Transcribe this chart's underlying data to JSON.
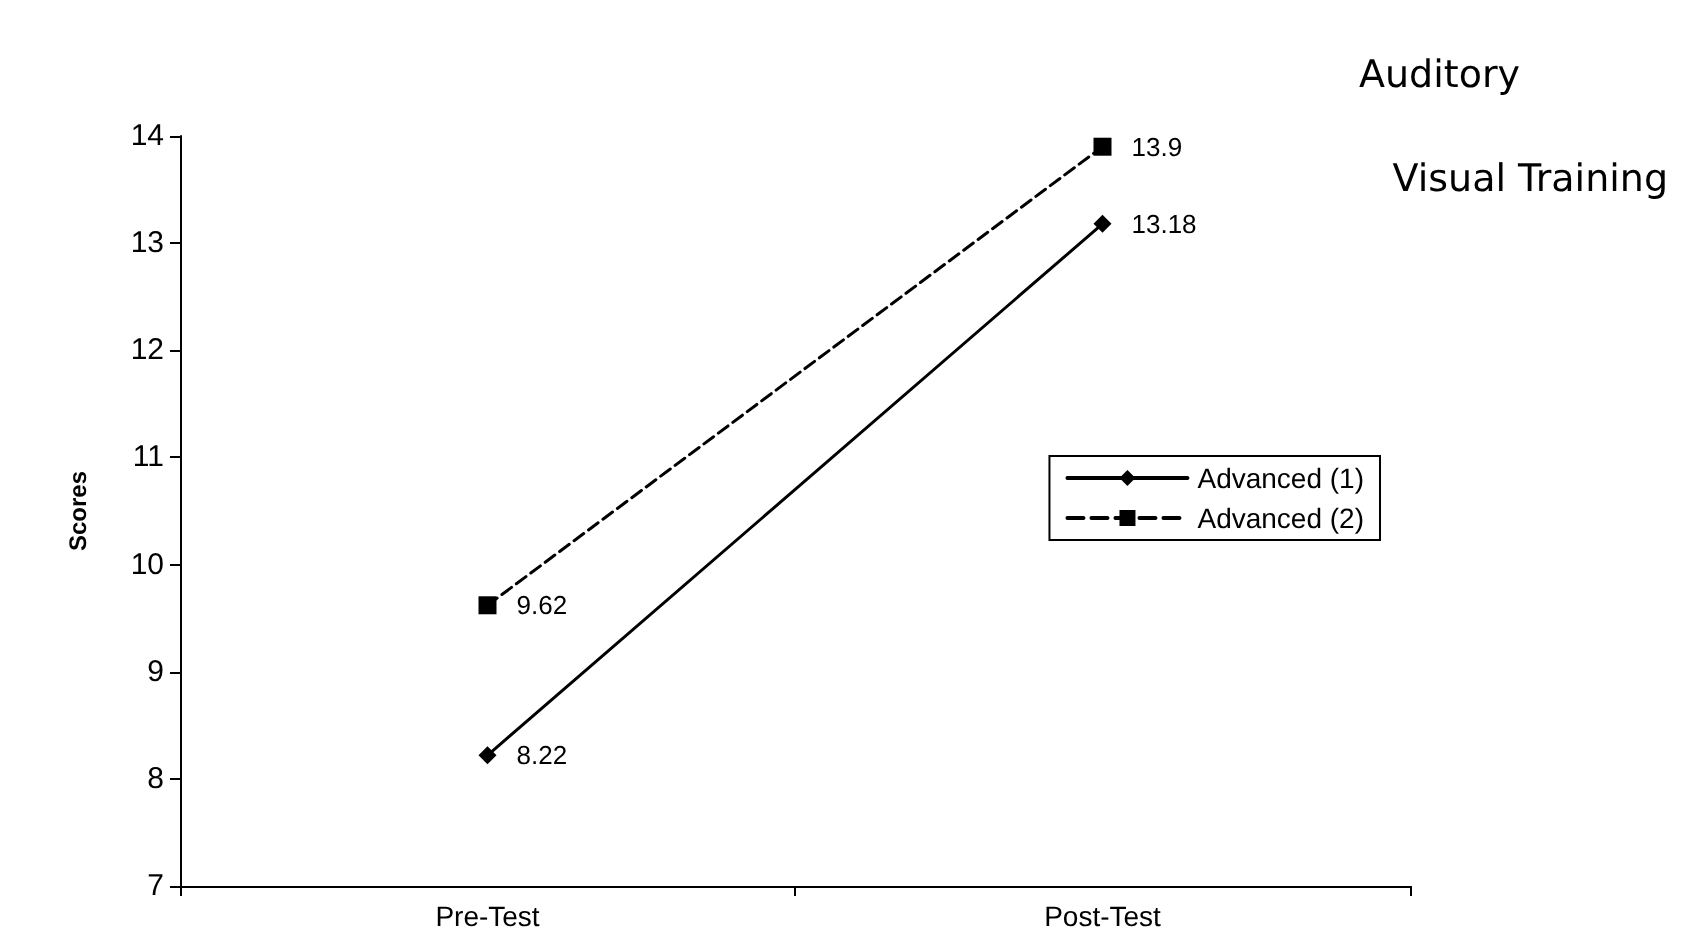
{
  "chart_data": {
    "type": "line",
    "ylabel": "Scores",
    "categories": [
      "Pre-Test",
      "Post-Test"
    ],
    "series": [
      {
        "name": "Advanced (1)",
        "color": "#000000",
        "values": [
          8.22,
          13.18
        ],
        "marker": "diamond",
        "line_style": "solid"
      },
      {
        "name": "Advanced (2)",
        "color": "#000000",
        "values": [
          9.62,
          13.9
        ],
        "marker": "square",
        "line_style": "dashed"
      }
    ],
    "ylim": [
      7,
      14
    ],
    "yticks": [
      7,
      8,
      9,
      10,
      11,
      12,
      13,
      14
    ],
    "grid": false,
    "legend": "right",
    "data_labels": true,
    "annotations": [
      "Auditory",
      "Visual Training"
    ]
  }
}
